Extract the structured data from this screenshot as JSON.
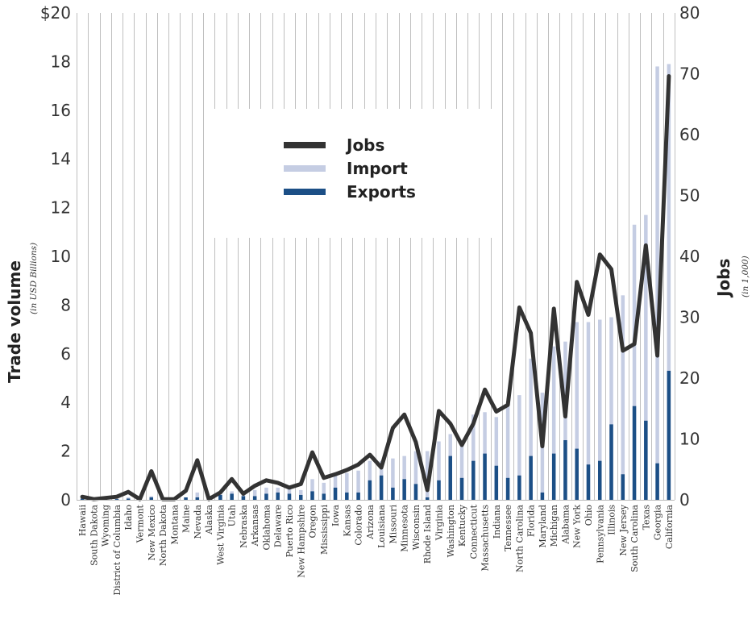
{
  "chart_data": {
    "type": "bar",
    "title": "",
    "y_left": {
      "label": "Trade volume",
      "sublabel": "(in USD Billions)",
      "range": [
        0,
        20
      ],
      "ticks": [
        "0",
        "2",
        "4",
        "6",
        "8",
        "10",
        "12",
        "14",
        "16",
        "18",
        "$20"
      ]
    },
    "y_right": {
      "label": "Jobs",
      "sublabel": "(in 1,000)",
      "range": [
        0,
        80
      ],
      "ticks": [
        "0",
        "10",
        "20",
        "30",
        "40",
        "50",
        "60",
        "70",
        "80"
      ]
    },
    "grid": "vertical",
    "legend": {
      "placement": "top-left",
      "items": [
        "Jobs",
        "Import",
        "Exports"
      ]
    },
    "categories": [
      "Hawaii",
      "South Dakota",
      "Wyoming",
      "District of Columbia",
      "Idaho",
      "Vermont",
      "New Mexico",
      "North Dakota",
      "Montana",
      "Maine",
      "Nevada",
      "Alaska",
      "West Virginia",
      "Utah",
      "Nebraska",
      "Arkansas",
      "Oklahoma",
      "Delaware",
      "Puerto Rico",
      "New Hampshire",
      "Oregon",
      "Mississippi",
      "Iowa",
      "Kansas",
      "Colorado",
      "Arizona",
      "Louisiana",
      "Missouri",
      "Minnesota",
      "Wisconsin",
      "Rhode Island",
      "Virginia",
      "Washington",
      "Kentucky",
      "Connecticut",
      "Massachusetts",
      "Indiana",
      "Tennessee",
      "North Carolina",
      "Florida",
      "Maryland",
      "Michigan",
      "Alabama",
      "New York",
      "Ohio",
      "Pennsylvania",
      "Illinois",
      "New Jersey",
      "South Carolina",
      "Texas",
      "Georgia",
      "California"
    ],
    "series": [
      {
        "name": "Import",
        "axis": "left",
        "color": "#c5cde3",
        "values": [
          0.05,
          0.05,
          0.05,
          0.05,
          0.1,
          0.05,
          0.15,
          0.05,
          0.05,
          0.1,
          0.3,
          0.1,
          0.3,
          0.35,
          0.3,
          0.4,
          0.5,
          0.5,
          0.45,
          0.4,
          0.85,
          0.7,
          1.0,
          1.1,
          1.2,
          1.6,
          1.6,
          1.7,
          1.8,
          2.0,
          2.0,
          2.4,
          2.7,
          2.4,
          3.5,
          3.6,
          3.4,
          3.9,
          4.3,
          5.8,
          4.4,
          6.3,
          6.5,
          7.3,
          7.3,
          7.4,
          7.5,
          8.4,
          11.3,
          11.7,
          17.8,
          17.9
        ]
      },
      {
        "name": "Exports",
        "axis": "left",
        "color": "#1c4f86",
        "values": [
          0.05,
          0.05,
          0.03,
          0.03,
          0.05,
          0.05,
          0.1,
          0.05,
          0.03,
          0.1,
          0.1,
          0.1,
          0.2,
          0.25,
          0.15,
          0.15,
          0.25,
          0.3,
          0.25,
          0.2,
          0.35,
          0.25,
          0.5,
          0.3,
          0.3,
          0.8,
          1.0,
          0.5,
          0.85,
          0.65,
          0.1,
          0.8,
          1.8,
          0.9,
          1.6,
          1.9,
          1.4,
          0.9,
          1.0,
          1.8,
          0.3,
          1.9,
          2.45,
          2.1,
          1.45,
          1.6,
          3.1,
          1.05,
          3.85,
          3.25,
          1.5,
          5.3
        ]
      },
      {
        "name": "Jobs",
        "axis": "right",
        "color": "#333333",
        "values": [
          0.5,
          0.1,
          0.3,
          0.5,
          1.3,
          0.1,
          4.7,
          0.1,
          0.1,
          1.5,
          6.5,
          0.1,
          1.2,
          3.4,
          1.0,
          2.3,
          3.2,
          2.8,
          2.0,
          2.6,
          7.8,
          3.6,
          4.2,
          4.9,
          5.8,
          7.4,
          5.3,
          11.8,
          14.0,
          9.5,
          1.6,
          14.6,
          12.5,
          9.0,
          12.5,
          18.1,
          14.5,
          15.6,
          31.6,
          27.4,
          8.8,
          31.4,
          13.7,
          35.8,
          30.4,
          40.3,
          37.9,
          24.5,
          25.6,
          41.8,
          23.7,
          69.6
        ]
      }
    ]
  }
}
